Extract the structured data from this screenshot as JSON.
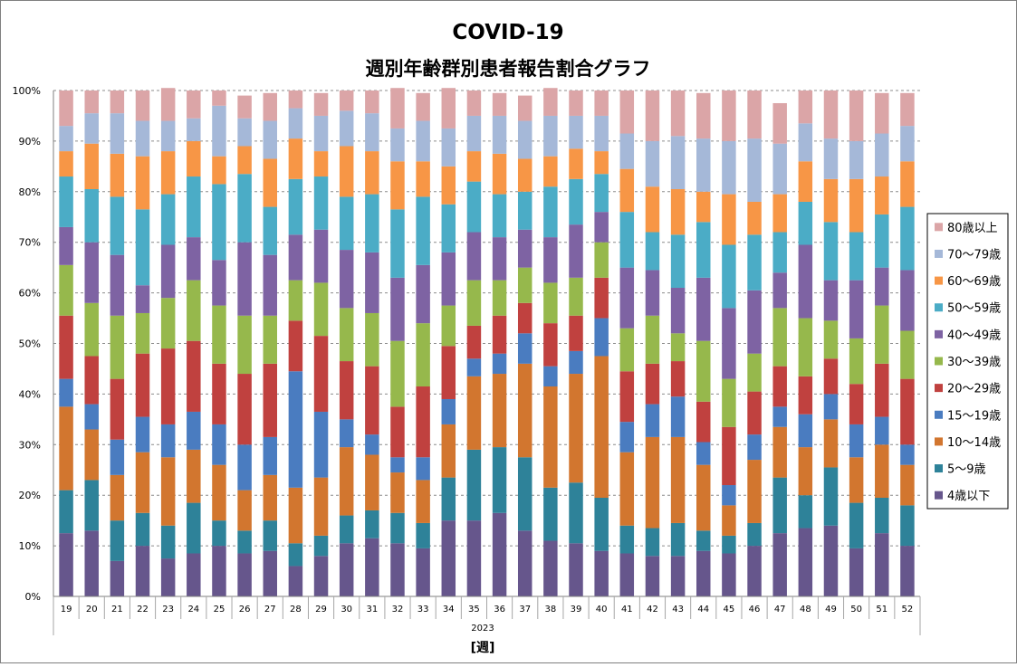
{
  "chart_data": {
    "type": "bar",
    "stacked": true,
    "title": "COVID-19",
    "subtitle": "週別年齢群別患者報告割合グラフ",
    "xlabel": "[週]",
    "year_label": "2023",
    "ylabel": "",
    "ylim": [
      0,
      100
    ],
    "y_ticks": [
      "0%",
      "10%",
      "20%",
      "30%",
      "40%",
      "50%",
      "60%",
      "70%",
      "80%",
      "90%",
      "100%"
    ],
    "grid": true,
    "legend_position": "right",
    "categories": [
      "19",
      "20",
      "21",
      "22",
      "23",
      "24",
      "25",
      "26",
      "27",
      "28",
      "29",
      "30",
      "31",
      "32",
      "33",
      "34",
      "35",
      "36",
      "37",
      "38",
      "39",
      "40",
      "41",
      "42",
      "43",
      "44",
      "45",
      "46",
      "47",
      "48",
      "49",
      "50",
      "51",
      "52"
    ],
    "series": [
      {
        "name": "4歳以下",
        "color": "#66568C",
        "values": [
          12.5,
          13,
          7,
          10,
          7.5,
          8.5,
          10,
          8.5,
          9,
          6,
          8,
          10.5,
          11.5,
          10.5,
          9.5,
          15,
          15,
          16.5,
          13,
          11,
          10.5,
          9,
          8.5,
          8,
          8,
          9,
          8.5,
          10,
          12.5,
          13.5,
          14,
          9.5,
          12.5,
          10
        ]
      },
      {
        "name": "5〜9歳",
        "color": "#2E8299",
        "values": [
          8.5,
          10,
          8,
          6.5,
          6.5,
          10,
          5,
          4.5,
          6,
          4.5,
          4,
          5.5,
          5.5,
          6,
          5,
          8.5,
          14,
          13,
          14.5,
          10.5,
          12,
          10.5,
          5.5,
          5.5,
          6.5,
          4,
          3.5,
          4.5,
          11,
          6.5,
          11.5,
          9,
          7,
          8
        ]
      },
      {
        "name": "10〜14歳",
        "color": "#D2762F",
        "values": [
          16.5,
          10,
          9,
          12,
          13.5,
          10.5,
          11,
          8,
          9,
          11,
          11.5,
          13.5,
          11,
          8,
          8.5,
          10.5,
          14.5,
          14.5,
          18.5,
          20,
          21.5,
          28,
          14.5,
          18,
          17,
          13,
          6,
          12.5,
          10,
          9.5,
          9.5,
          9,
          10.5,
          8
        ]
      },
      {
        "name": "15〜19歳",
        "color": "#4A7CC0",
        "values": [
          5.5,
          5,
          7,
          7,
          6.5,
          7.5,
          8,
          9,
          7.5,
          23,
          13,
          5.5,
          4,
          3,
          4.5,
          5,
          3.5,
          4,
          6,
          4,
          4.5,
          7.5,
          6,
          6.5,
          8,
          4.5,
          4,
          5,
          4,
          6.5,
          5,
          6.5,
          5.5,
          4
        ]
      },
      {
        "name": "20〜29歳",
        "color": "#C0413F",
        "values": [
          12.5,
          9.5,
          12,
          12.5,
          15,
          14,
          12,
          14,
          14.5,
          10,
          15,
          11.5,
          13.5,
          10,
          14,
          10.5,
          6.5,
          7.5,
          6,
          8.5,
          7,
          8,
          10,
          8,
          7,
          8,
          11.5,
          8.5,
          8,
          7.5,
          7,
          8,
          10.5,
          13
        ]
      },
      {
        "name": "30〜39歳",
        "color": "#96B84C",
        "values": [
          10,
          10.5,
          12.5,
          8,
          10,
          12,
          11.5,
          11.5,
          9.5,
          8,
          10.5,
          10.5,
          10.5,
          13,
          12.5,
          8,
          9,
          7,
          7,
          8,
          7.5,
          7,
          8.5,
          9.5,
          5.5,
          12,
          9.5,
          7.5,
          11.5,
          11.5,
          7.5,
          9,
          11.5,
          9.5
        ]
      },
      {
        "name": "40〜49歳",
        "color": "#7E63A3",
        "values": [
          7.5,
          12,
          12,
          5.5,
          10.5,
          8.5,
          9,
          14.5,
          12,
          9,
          10.5,
          11.5,
          12,
          12.5,
          11.5,
          10.5,
          9.5,
          8.5,
          7.5,
          9,
          10.5,
          6,
          12,
          9,
          9,
          12.5,
          14,
          12.5,
          7,
          14.5,
          8,
          11.5,
          7.5,
          12
        ]
      },
      {
        "name": "50〜59歳",
        "color": "#4BACC6",
        "values": [
          10,
          10.5,
          11.5,
          15,
          10,
          12,
          15,
          13.5,
          9.5,
          11,
          10.5,
          10.5,
          11.5,
          13.5,
          13.5,
          9.5,
          10,
          8.5,
          7.5,
          10,
          9,
          7.5,
          11,
          7.5,
          10.5,
          11,
          12.5,
          11,
          8,
          8.5,
          11.5,
          9.5,
          10.5,
          12.5
        ]
      },
      {
        "name": "60〜69歳",
        "color": "#F79646",
        "values": [
          5,
          9,
          8.5,
          10.5,
          8.5,
          7,
          5.5,
          5.5,
          9.5,
          8,
          5,
          10,
          8.5,
          9.5,
          7,
          7.5,
          6,
          8,
          6.5,
          6,
          6,
          4.5,
          8.5,
          9,
          9,
          6,
          10,
          6.5,
          7.5,
          8,
          8.5,
          10.5,
          7.5,
          9
        ]
      },
      {
        "name": "70〜79歳",
        "color": "#A5B8D8",
        "values": [
          5,
          6,
          8,
          7,
          6,
          4.5,
          10,
          5.5,
          7.5,
          6,
          7,
          7,
          7.5,
          6.5,
          8,
          7.5,
          7,
          7.5,
          7.5,
          8,
          6.5,
          7,
          7,
          9,
          10.5,
          10.5,
          10.5,
          12.5,
          10,
          7.5,
          8,
          7.5,
          8.5,
          7
        ]
      },
      {
        "name": "80歳以上",
        "color": "#DBA5A7",
        "values": [
          7,
          4.5,
          4.5,
          6,
          6.5,
          5.5,
          3,
          4.5,
          5.5,
          3.5,
          4.5,
          4,
          4.5,
          8,
          5.5,
          8,
          5,
          4.5,
          5,
          5.5,
          5,
          5,
          8.5,
          10,
          9,
          9,
          10,
          9.5,
          8,
          6.5,
          9.5,
          10,
          8,
          6.5
        ]
      }
    ]
  }
}
